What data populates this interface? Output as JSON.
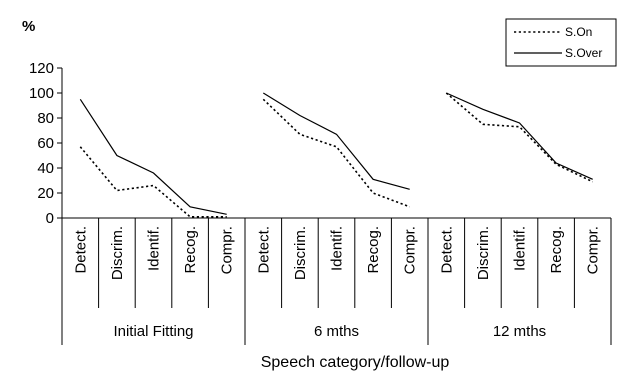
{
  "chart_data": {
    "type": "line",
    "unit_label": "%",
    "xlabel": "Speech category/follow-up",
    "ylim": [
      0,
      120
    ],
    "yticks": [
      "0",
      "20",
      "40",
      "60",
      "80",
      "100",
      "120"
    ],
    "groups": [
      {
        "name": "Initial Fitting",
        "categories": [
          "Detect.",
          "Discrim.",
          "Identif.",
          "Recog.",
          "Compr."
        ]
      },
      {
        "name": "6 mths",
        "categories": [
          "Detect.",
          "Discrim.",
          "Identif.",
          "Recog.",
          "Compr."
        ]
      },
      {
        "name": "12 mths",
        "categories": [
          "Detect.",
          "Discrim.",
          "Identif.",
          "Recog.",
          "Compr."
        ]
      }
    ],
    "series": [
      {
        "name": "S.On",
        "style": "dotted",
        "segments": [
          [
            57,
            22,
            26,
            1,
            1
          ],
          [
            95,
            67,
            57,
            20,
            9
          ],
          [
            100,
            75,
            73,
            43,
            29
          ]
        ]
      },
      {
        "name": "S.Over",
        "style": "solid",
        "segments": [
          [
            95,
            50,
            36,
            9,
            3
          ],
          [
            100,
            82,
            67,
            31,
            23
          ],
          [
            100,
            87,
            76,
            44,
            31
          ]
        ]
      }
    ],
    "legend": "top-right",
    "grid": false
  }
}
